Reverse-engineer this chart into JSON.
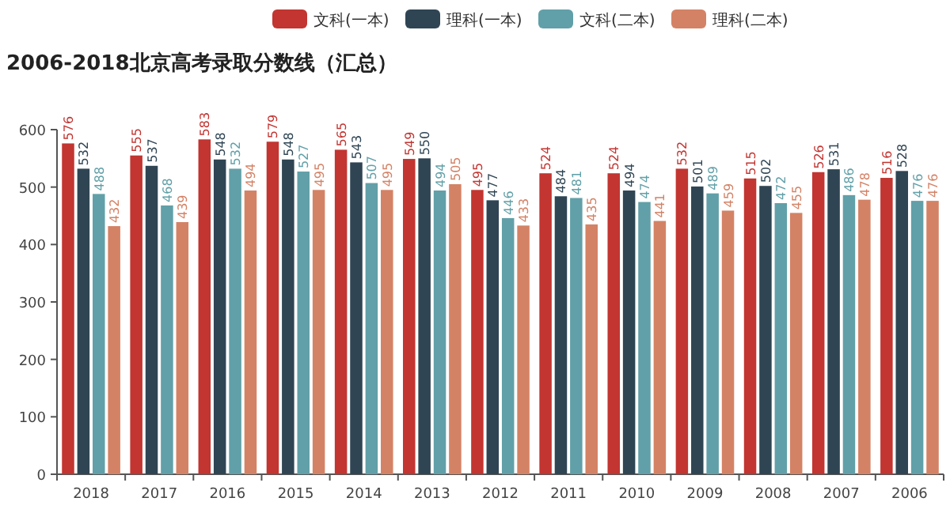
{
  "chart_data": {
    "type": "bar",
    "title": "2006-2018北京高考录取分数线（汇总）",
    "categories": [
      "2018",
      "2017",
      "2016",
      "2015",
      "2014",
      "2013",
      "2012",
      "2011",
      "2010",
      "2009",
      "2008",
      "2007",
      "2006"
    ],
    "series": [
      {
        "name": "文科(一本)",
        "color": "#c23531",
        "values": [
          576,
          555,
          583,
          579,
          565,
          549,
          495,
          524,
          524,
          532,
          515,
          526,
          516
        ]
      },
      {
        "name": "理科(一本)",
        "color": "#2f4554",
        "values": [
          532,
          537,
          548,
          548,
          543,
          550,
          477,
          484,
          494,
          501,
          502,
          531,
          528
        ]
      },
      {
        "name": "文科(二本)",
        "color": "#61a0a8",
        "values": [
          488,
          468,
          532,
          527,
          507,
          494,
          446,
          481,
          474,
          489,
          472,
          486,
          476
        ]
      },
      {
        "name": "理科(二本)",
        "color": "#d48265",
        "values": [
          432,
          439,
          494,
          495,
          495,
          505,
          433,
          435,
          441,
          459,
          455,
          478,
          476
        ]
      }
    ],
    "ylim": [
      0,
      600
    ],
    "yticks": [
      0,
      100,
      200,
      300,
      400,
      500,
      600
    ],
    "grid": false,
    "legend": "top",
    "data_labels": true
  }
}
